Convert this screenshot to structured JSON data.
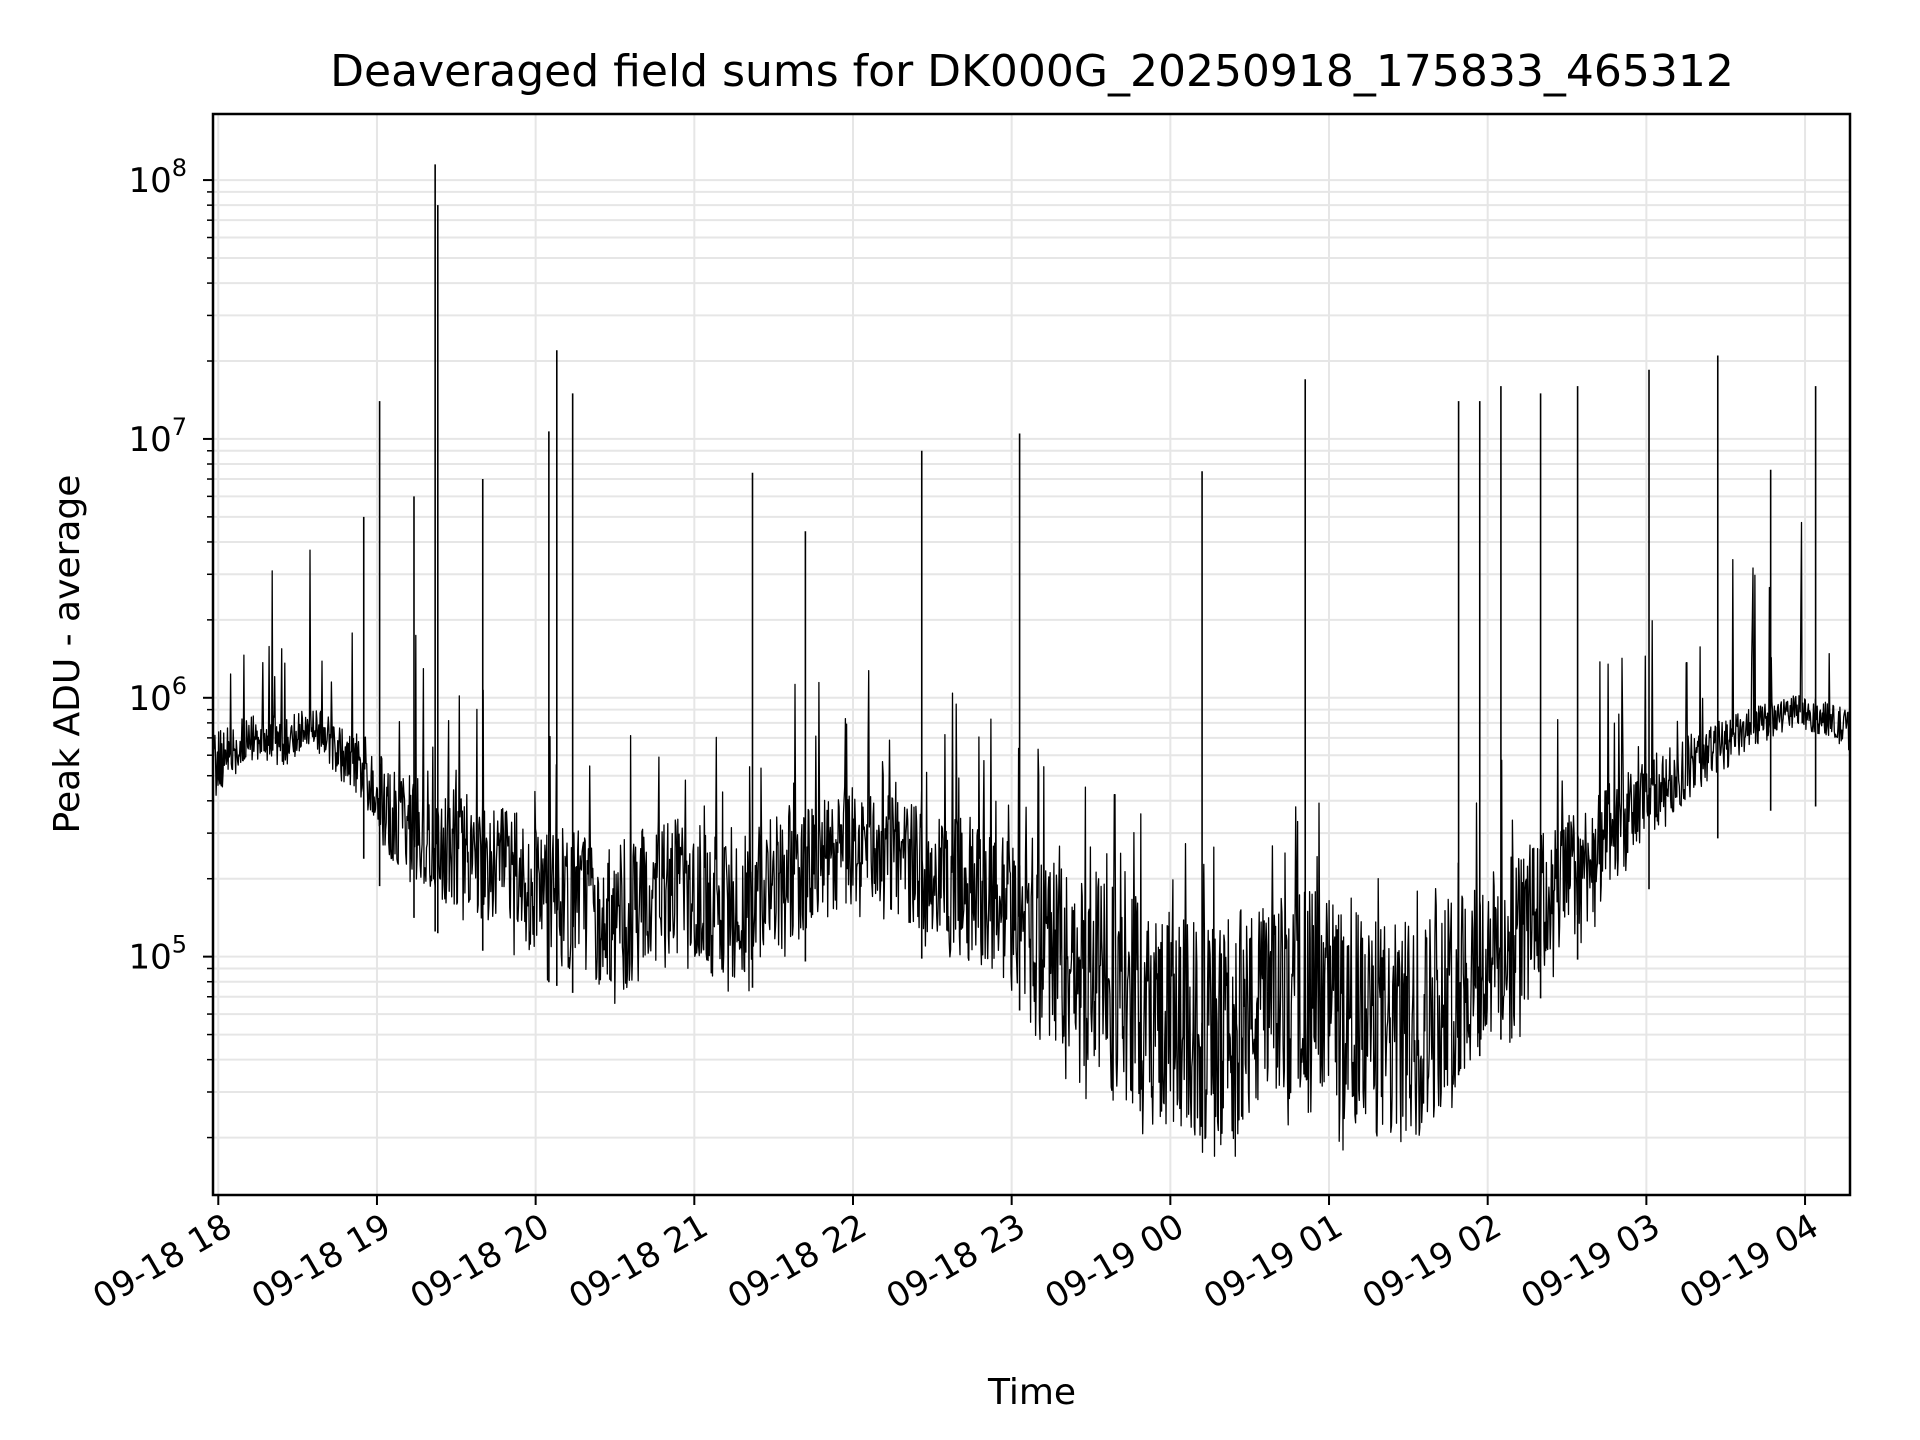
{
  "chart_data": {
    "type": "line",
    "title": "Deaveraged field sums for DK000G_20250918_175833_465312",
    "xlabel": "Time",
    "ylabel": "Peak ADU - average",
    "y_scale": "log",
    "ylim": [
      12000,
      180000000
    ],
    "x_range_hours_label": [
      "09-18 17:58",
      "09-19 04:17"
    ],
    "x_ticks": [
      "09-18 18",
      "09-18 19",
      "09-18 20",
      "09-18 21",
      "09-18 22",
      "09-18 23",
      "09-19 00",
      "09-19 01",
      "09-19 02",
      "09-19 03",
      "09-19 04"
    ],
    "y_ticks": [
      {
        "base": "10",
        "exp": "5",
        "value": 100000
      },
      {
        "base": "10",
        "exp": "6",
        "value": 1000000
      },
      {
        "base": "10",
        "exp": "7",
        "value": 10000000
      },
      {
        "base": "10",
        "exp": "8",
        "value": 100000000
      }
    ],
    "grid": true,
    "line_color": "#000000",
    "series": [
      {
        "x": [
          "09-18 17:58",
          "09-18 18:05",
          "09-18 18:15",
          "09-18 18:25",
          "09-18 18:35",
          "09-18 18:45",
          "09-18 18:55",
          "09-18 19:05",
          "09-18 19:15",
          "09-18 19:25",
          "09-18 19:35",
          "09-18 19:45",
          "09-18 19:55",
          "09-18 20:05",
          "09-18 20:15",
          "09-18 20:25",
          "09-18 20:35",
          "09-18 20:45",
          "09-18 20:55",
          "09-18 21:05",
          "09-18 21:15",
          "09-18 21:25",
          "09-18 21:35",
          "09-18 21:45",
          "09-18 21:55",
          "09-18 22:05",
          "09-18 22:15",
          "09-18 22:25",
          "09-18 22:35",
          "09-18 22:45",
          "09-18 22:55",
          "09-18 23:05",
          "09-18 23:15",
          "09-18 23:25",
          "09-18 23:35",
          "09-18 23:45",
          "09-18 23:55",
          "09-19 00:05",
          "09-19 00:15",
          "09-19 00:25",
          "09-19 00:35",
          "09-19 00:45",
          "09-19 00:55",
          "09-19 01:05",
          "09-19 01:15",
          "09-19 01:25",
          "09-19 01:35",
          "09-19 01:45",
          "09-19 01:55",
          "09-19 02:05",
          "09-19 02:15",
          "09-19 02:25",
          "09-19 02:35",
          "09-19 02:45",
          "09-19 02:55",
          "09-19 03:05",
          "09-19 03:15",
          "09-19 03:25",
          "09-19 03:35",
          "09-19 03:45",
          "09-19 03:55",
          "09-19 04:05",
          "09-19 04:15"
        ],
        "y": [
          600000,
          700000,
          800000,
          750000,
          900000,
          700000,
          600000,
          400000,
          350000,
          300000,
          280000,
          250000,
          220000,
          200000,
          180000,
          170000,
          160000,
          200000,
          220000,
          180000,
          170000,
          200000,
          220000,
          250000,
          280000,
          300000,
          280000,
          250000,
          220000,
          200000,
          180000,
          150000,
          120000,
          100000,
          90000,
          80000,
          70000,
          60000,
          55000,
          60000,
          70000,
          80000,
          90000,
          70000,
          60000,
          55000,
          60000,
          80000,
          100000,
          120000,
          150000,
          200000,
          250000,
          300000,
          400000,
          500000,
          600000,
          700000,
          800000,
          900000,
          1000000,
          950000,
          850000
        ]
      }
    ],
    "spikes": [
      {
        "x": "09-18 18:55",
        "y": 5000000
      },
      {
        "x": "09-18 19:01",
        "y": 14000000
      },
      {
        "x": "09-18 19:14",
        "y": 6000000
      },
      {
        "x": "09-18 19:22",
        "y": 115000000
      },
      {
        "x": "09-18 19:23",
        "y": 80000000
      },
      {
        "x": "09-18 19:40",
        "y": 7000000
      },
      {
        "x": "09-18 20:05",
        "y": 10700000
      },
      {
        "x": "09-18 20:08",
        "y": 22000000
      },
      {
        "x": "09-18 20:14",
        "y": 15000000
      },
      {
        "x": "09-18 21:22",
        "y": 7400000
      },
      {
        "x": "09-18 21:42",
        "y": 4400000
      },
      {
        "x": "09-18 22:26",
        "y": 9000000
      },
      {
        "x": "09-18 23:03",
        "y": 10500000
      },
      {
        "x": "09-19 00:12",
        "y": 7500000
      },
      {
        "x": "09-19 00:51",
        "y": 17000000
      },
      {
        "x": "09-19 01:49",
        "y": 14000000
      },
      {
        "x": "09-19 01:57",
        "y": 14000000
      },
      {
        "x": "09-19 02:05",
        "y": 16000000
      },
      {
        "x": "09-19 02:20",
        "y": 15000000
      },
      {
        "x": "09-19 02:34",
        "y": 16000000
      },
      {
        "x": "09-19 03:01",
        "y": 18500000
      },
      {
        "x": "09-19 03:27",
        "y": 21000000
      },
      {
        "x": "09-19 03:47",
        "y": 7600000
      },
      {
        "x": "09-19 04:04",
        "y": 16000000
      }
    ]
  }
}
